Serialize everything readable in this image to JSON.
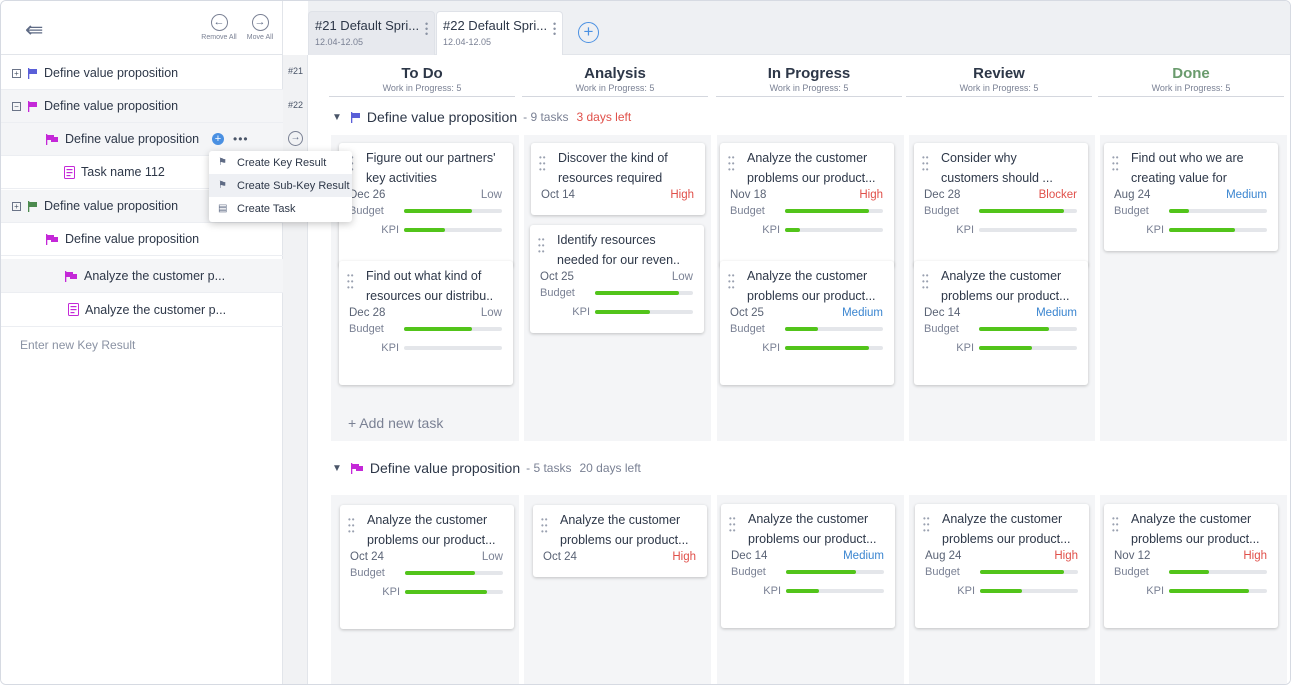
{
  "toolbar": {
    "remove_all": "Remove All",
    "move_all": "Move All"
  },
  "sidebar": {
    "items": [
      {
        "label": "Define value proposition",
        "flag": "#5a5fd8",
        "exp": "+"
      },
      {
        "label": "Define value proposition",
        "flag": "#c428d8",
        "exp": "−"
      },
      {
        "label": "Define value proposition",
        "flag": "#c428d8"
      },
      {
        "label": "Task name 112"
      },
      {
        "label": "Define value proposition",
        "flag": "#4c8a4f",
        "exp": "+"
      },
      {
        "label": "Define value proposition",
        "flag": "#c428d8"
      },
      {
        "label": "Analyze the customer p...",
        "flag": "#c428d8"
      },
      {
        "label": "Analyze the customer p..."
      }
    ],
    "enter_placeholder": "Enter new Key Result",
    "numbers": [
      "#21",
      "#22"
    ]
  },
  "menu": {
    "items": [
      "Create Key Result",
      "Create Sub-Key Result",
      "Create Task"
    ]
  },
  "tabs": [
    {
      "title": "#21  Default Spri...",
      "dates": "12.04-12.05"
    },
    {
      "title": "#22  Default Spri...",
      "dates": "12.04-12.05"
    }
  ],
  "columns": [
    {
      "name": "To Do",
      "wip": "Work in Progress: 5"
    },
    {
      "name": "Analysis",
      "wip": "Work in Progress: 5"
    },
    {
      "name": "In Progress",
      "wip": "Work in Progress: 5"
    },
    {
      "name": "Review",
      "wip": "Work in Progress: 5"
    },
    {
      "name": "Done",
      "wip": "Work in Progress: 5"
    }
  ],
  "groups": [
    {
      "title": "Define value proposition",
      "meta": "- 9 tasks",
      "late": "3 days left",
      "left": "",
      "flag": "#5a5fd8"
    },
    {
      "title": "Define value proposition",
      "meta": "- 5 tasks",
      "late": "",
      "left": "20 days left",
      "flag": "#c428d8"
    }
  ],
  "labels": {
    "budget": "Budget",
    "kpi": "KPI",
    "add_task": "+ Add new task"
  },
  "cards": [
    {
      "title": "Figure out our partners' key activities",
      "date": "Dec 26",
      "priority": "Low",
      "budget": 0.69,
      "kpi": 0.42
    },
    {
      "title": "Find out what kind of resources our distribu..",
      "date": "Dec 28",
      "priority": "Low",
      "budget": 0.69,
      "kpi": 0
    },
    {
      "title": "Discover the kind of resources required",
      "date": "Oct 14",
      "priority": "High"
    },
    {
      "title": "Identify resources needed for our reven..",
      "date": "Oct 25",
      "priority": "Low",
      "budget": 0.86,
      "kpi": 0.56
    },
    {
      "title": "Analyze the customer problems our product...",
      "date": "Nov 18",
      "priority": "High",
      "budget": 0.86,
      "kpi": 0.15
    },
    {
      "title": "Analyze the customer problems our product...",
      "date": "Oct 25",
      "priority": "Medium",
      "budget": 0.34,
      "kpi": 0.86
    },
    {
      "title": "Consider why customers should ...",
      "date": "Dec 28",
      "priority": "Blocker",
      "budget": 0.87,
      "kpi": 0
    },
    {
      "title": "Analyze the customer problems our product...",
      "date": "Dec 14",
      "priority": "Medium",
      "budget": 0.71,
      "kpi": 0.54
    },
    {
      "title": "Find out who we are creating value for",
      "date": "Aug 24",
      "priority": "Medium",
      "budget": 0.2,
      "kpi": 0.67
    },
    {
      "title": "Analyze the customer problems our product...",
      "date": "Oct 24",
      "priority": "Low",
      "budget": 0.71,
      "kpi": 0.84
    },
    {
      "title": "Analyze the customer problems our product...",
      "date": "Oct 24",
      "priority": "High"
    },
    {
      "title": "Analyze the customer problems our product...",
      "date": "Dec 14",
      "priority": "Medium",
      "budget": 0.71,
      "kpi": 0.34
    },
    {
      "title": "Analyze the customer problems our product...",
      "date": "Aug 24",
      "priority": "High",
      "budget": 0.86,
      "kpi": 0.43
    },
    {
      "title": "Analyze the customer problems our product...",
      "date": "Nov 12",
      "priority": "High",
      "budget": 0.41,
      "kpi": 0.82
    }
  ]
}
